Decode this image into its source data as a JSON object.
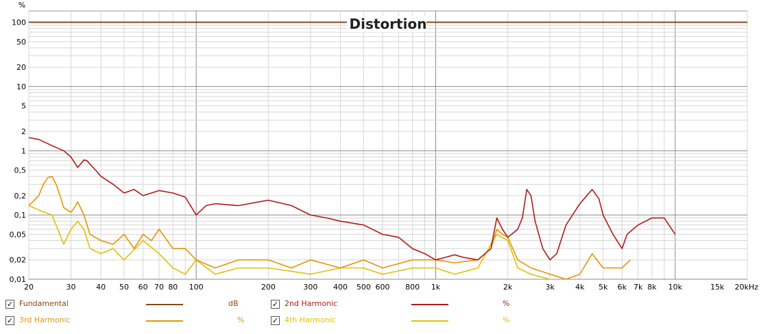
{
  "chart_data": {
    "type": "line",
    "title": "Distortion",
    "ylabel": "%",
    "x_scale": "log",
    "y_scale": "log",
    "xlim": [
      20,
      20000
    ],
    "ylim": [
      0.01,
      150
    ],
    "x_ticks": [
      {
        "v": 20,
        "label": "20"
      },
      {
        "v": 30,
        "label": "30"
      },
      {
        "v": 40,
        "label": "40"
      },
      {
        "v": 50,
        "label": "50"
      },
      {
        "v": 60,
        "label": "60"
      },
      {
        "v": 70,
        "label": "70"
      },
      {
        "v": 80,
        "label": "80"
      },
      {
        "v": 100,
        "label": "100"
      },
      {
        "v": 200,
        "label": "200"
      },
      {
        "v": 300,
        "label": "300"
      },
      {
        "v": 400,
        "label": "400"
      },
      {
        "v": 500,
        "label": "500"
      },
      {
        "v": 600,
        "label": "600"
      },
      {
        "v": 800,
        "label": "800"
      },
      {
        "v": 1000,
        "label": "1k"
      },
      {
        "v": 2000,
        "label": "2k"
      },
      {
        "v": 3000,
        "label": "3k"
      },
      {
        "v": 4000,
        "label": "4k"
      },
      {
        "v": 5000,
        "label": "5k"
      },
      {
        "v": 6000,
        "label": "6k"
      },
      {
        "v": 7000,
        "label": "7k"
      },
      {
        "v": 8000,
        "label": "8k"
      },
      {
        "v": 10000,
        "label": "10k"
      },
      {
        "v": 15000,
        "label": "15k"
      },
      {
        "v": 20000,
        "label": "20kHz"
      }
    ],
    "y_ticks": [
      {
        "v": 100,
        "label": "100"
      },
      {
        "v": 50,
        "label": "50"
      },
      {
        "v": 20,
        "label": "20"
      },
      {
        "v": 10,
        "label": "10"
      },
      {
        "v": 5,
        "label": "5"
      },
      {
        "v": 2,
        "label": "2"
      },
      {
        "v": 1,
        "label": "1"
      },
      {
        "v": 0.5,
        "label": "0,5"
      },
      {
        "v": 0.2,
        "label": "0,2"
      },
      {
        "v": 0.1,
        "label": "0,1"
      },
      {
        "v": 0.05,
        "label": "0,05"
      },
      {
        "v": 0.02,
        "label": "0,02"
      },
      {
        "v": 0.01,
        "label": "0,01"
      }
    ],
    "series": [
      {
        "name": "Fundamental",
        "color": "#8B4513",
        "unit": "dB",
        "x": [
          20,
          20000
        ],
        "y": [
          100,
          100
        ]
      },
      {
        "name": "2nd Harmonic",
        "color": "#B01818",
        "unit": "%",
        "x": [
          20,
          22,
          25,
          28,
          30,
          32,
          34,
          35,
          36,
          38,
          40,
          45,
          50,
          55,
          60,
          70,
          80,
          90,
          100,
          110,
          120,
          150,
          200,
          250,
          300,
          350,
          400,
          500,
          600,
          700,
          800,
          900,
          1000,
          1100,
          1200,
          1300,
          1500,
          1700,
          1800,
          1900,
          2000,
          2200,
          2300,
          2400,
          2500,
          2600,
          2800,
          3000,
          3200,
          3500,
          4000,
          4500,
          4800,
          5000,
          5500,
          6000,
          6300,
          7000,
          8000,
          9000,
          10000
        ],
        "y": [
          1.6,
          1.5,
          1.2,
          1.0,
          0.8,
          0.55,
          0.72,
          0.7,
          0.62,
          0.5,
          0.4,
          0.3,
          0.22,
          0.25,
          0.2,
          0.24,
          0.22,
          0.19,
          0.1,
          0.14,
          0.15,
          0.14,
          0.17,
          0.14,
          0.1,
          0.09,
          0.08,
          0.07,
          0.05,
          0.045,
          0.03,
          0.025,
          0.02,
          0.022,
          0.024,
          0.022,
          0.02,
          0.03,
          0.09,
          0.06,
          0.045,
          0.06,
          0.09,
          0.25,
          0.2,
          0.08,
          0.03,
          0.02,
          0.025,
          0.07,
          0.15,
          0.25,
          0.18,
          0.1,
          0.05,
          0.03,
          0.05,
          0.07,
          0.09,
          0.09,
          0.05
        ]
      },
      {
        "name": "3rd Harmonic",
        "color": "#E59400",
        "unit": "%",
        "x": [
          20,
          22,
          23,
          24,
          25,
          26,
          27,
          28,
          30,
          31,
          32,
          34,
          36,
          40,
          45,
          50,
          55,
          60,
          65,
          70,
          80,
          90,
          100,
          120,
          150,
          200,
          250,
          300,
          400,
          500,
          600,
          800,
          1000,
          1200,
          1500,
          1700,
          1800,
          1900,
          2000,
          2200,
          2500,
          3000,
          3500,
          4000,
          4500,
          5000,
          6000,
          6500
        ],
        "y": [
          0.14,
          0.2,
          0.3,
          0.38,
          0.4,
          0.3,
          0.2,
          0.13,
          0.11,
          0.13,
          0.16,
          0.1,
          0.05,
          0.04,
          0.035,
          0.05,
          0.03,
          0.05,
          0.04,
          0.06,
          0.03,
          0.03,
          0.02,
          0.015,
          0.02,
          0.02,
          0.015,
          0.02,
          0.015,
          0.02,
          0.015,
          0.02,
          0.02,
          0.018,
          0.02,
          0.03,
          0.06,
          0.05,
          0.045,
          0.02,
          0.015,
          0.012,
          0.01,
          0.012,
          0.025,
          0.015,
          0.015,
          0.02
        ]
      },
      {
        "name": "4th Harmonic",
        "color": "#E0C000",
        "unit": "%",
        "x": [
          20,
          22,
          25,
          28,
          30,
          32,
          34,
          36,
          40,
          45,
          50,
          60,
          70,
          80,
          90,
          100,
          120,
          150,
          200,
          300,
          400,
          500,
          600,
          800,
          1000,
          1200,
          1500,
          1700,
          1800,
          2000,
          2200,
          2500,
          3000,
          3500,
          4000
        ],
        "y": [
          0.14,
          0.12,
          0.1,
          0.035,
          0.06,
          0.08,
          0.06,
          0.03,
          0.025,
          0.03,
          0.02,
          0.04,
          0.025,
          0.015,
          0.012,
          0.02,
          0.012,
          0.015,
          0.015,
          0.012,
          0.015,
          0.015,
          0.012,
          0.015,
          0.015,
          0.012,
          0.015,
          0.035,
          0.05,
          0.04,
          0.015,
          0.012,
          0.01,
          0.009,
          0.008
        ]
      }
    ]
  }
}
